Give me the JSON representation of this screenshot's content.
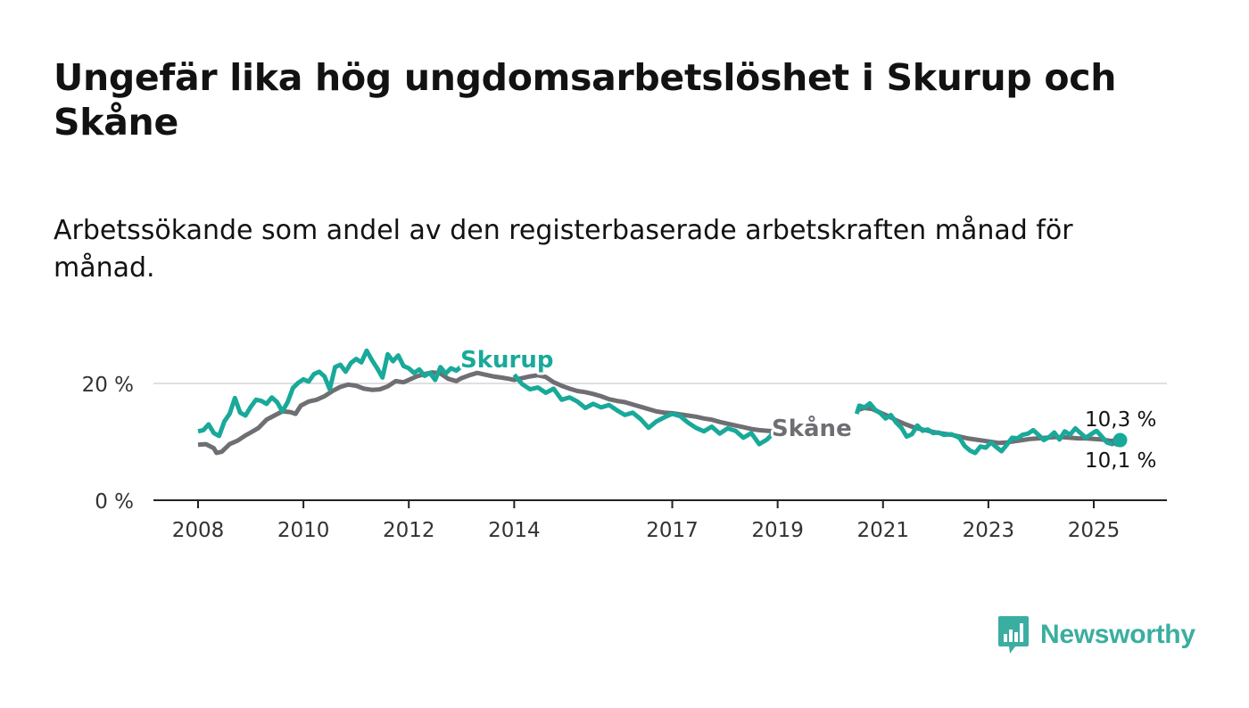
{
  "title": "Ungefär lika hög ungdomsarbetslöshet i Skurup och Skåne",
  "subtitle": "Arbetssökande som andel av den registerbaserade arbetskraften månad för månad.",
  "brand": {
    "name": "Newsworthy",
    "icon": "bar-chart-speech-bubble-icon",
    "color": "#3aaea0"
  },
  "chart_data": {
    "type": "line",
    "xlim": [
      2008,
      2025.8
    ],
    "ylim": [
      0,
      26
    ],
    "y_ticks": [
      {
        "value": 0,
        "label": "0 %"
      },
      {
        "value": 20,
        "label": "20 %"
      }
    ],
    "x_ticks": [
      {
        "value": 2008,
        "label": "2008"
      },
      {
        "value": 2010,
        "label": "2010"
      },
      {
        "value": 2012,
        "label": "2012"
      },
      {
        "value": 2014,
        "label": "2014"
      },
      {
        "value": 2017,
        "label": "2017"
      },
      {
        "value": 2019,
        "label": "2019"
      },
      {
        "value": 2021,
        "label": "2021"
      },
      {
        "value": 2023,
        "label": "2023"
      },
      {
        "value": 2025,
        "label": "2025"
      }
    ],
    "gridlines": "horizontal at 20 %",
    "series": [
      {
        "name": "Skåne",
        "color": "#6e6e73",
        "segments": [
          [
            [
              2008.0,
              9.5
            ],
            [
              2008.15,
              9.6
            ],
            [
              2008.3,
              8.9
            ],
            [
              2008.35,
              8.1
            ],
            [
              2008.45,
              8.3
            ],
            [
              2008.6,
              9.6
            ],
            [
              2008.75,
              10.2
            ],
            [
              2008.9,
              11.1
            ],
            [
              2009.0,
              11.6
            ],
            [
              2009.15,
              12.4
            ],
            [
              2009.3,
              13.8
            ],
            [
              2009.45,
              14.5
            ],
            [
              2009.6,
              15.2
            ],
            [
              2009.75,
              15.1
            ],
            [
              2009.85,
              14.8
            ],
            [
              2009.95,
              16.2
            ],
            [
              2010.1,
              16.9
            ],
            [
              2010.25,
              17.2
            ],
            [
              2010.4,
              17.8
            ],
            [
              2010.55,
              18.7
            ],
            [
              2010.7,
              19.4
            ],
            [
              2010.85,
              19.8
            ],
            [
              2011.0,
              19.6
            ],
            [
              2011.15,
              19.1
            ],
            [
              2011.3,
              18.9
            ],
            [
              2011.45,
              19.0
            ],
            [
              2011.6,
              19.5
            ],
            [
              2011.75,
              20.4
            ],
            [
              2011.9,
              20.2
            ],
            [
              2012.0,
              20.6
            ],
            [
              2012.15,
              21.2
            ],
            [
              2012.3,
              21.6
            ],
            [
              2012.45,
              21.9
            ],
            [
              2012.6,
              21.7
            ],
            [
              2012.75,
              20.8
            ],
            [
              2012.9,
              20.4
            ],
            [
              2013.0,
              20.9
            ],
            [
              2013.15,
              21.4
            ],
            [
              2013.3,
              21.8
            ],
            [
              2013.45,
              21.5
            ],
            [
              2013.6,
              21.2
            ],
            [
              2013.75,
              21.0
            ],
            [
              2013.9,
              20.8
            ],
            [
              2014.0,
              20.6
            ],
            [
              2014.15,
              20.9
            ],
            [
              2014.3,
              21.2
            ],
            [
              2014.45,
              21.4
            ],
            [
              2014.6,
              21.1
            ],
            [
              2014.75,
              20.2
            ],
            [
              2014.9,
              19.6
            ],
            [
              2015.05,
              19.1
            ],
            [
              2015.2,
              18.7
            ],
            [
              2015.35,
              18.5
            ],
            [
              2015.5,
              18.2
            ],
            [
              2015.65,
              17.8
            ],
            [
              2015.8,
              17.3
            ],
            [
              2015.95,
              17.0
            ],
            [
              2016.1,
              16.8
            ],
            [
              2016.25,
              16.4
            ],
            [
              2016.4,
              16.0
            ],
            [
              2016.55,
              15.6
            ],
            [
              2016.7,
              15.2
            ],
            [
              2016.85,
              15.0
            ],
            [
              2017.0,
              14.9
            ],
            [
              2017.15,
              14.7
            ],
            [
              2017.3,
              14.5
            ],
            [
              2017.45,
              14.3
            ],
            [
              2017.6,
              14.0
            ],
            [
              2017.75,
              13.8
            ],
            [
              2017.9,
              13.4
            ],
            [
              2018.05,
              13.1
            ],
            [
              2018.2,
              12.8
            ],
            [
              2018.35,
              12.5
            ],
            [
              2018.5,
              12.2
            ],
            [
              2018.65,
              12.0
            ],
            [
              2018.8,
              11.9
            ],
            [
              2018.95,
              11.8
            ],
            [
              2019.1,
              11.6
            ],
            [
              2019.25,
              11.4
            ]
          ],
          [
            [
              2020.5,
              15.4
            ],
            [
              2020.65,
              15.8
            ],
            [
              2020.8,
              15.6
            ],
            [
              2020.95,
              15.0
            ],
            [
              2021.1,
              14.4
            ],
            [
              2021.25,
              13.7
            ],
            [
              2021.4,
              13.1
            ],
            [
              2021.55,
              12.6
            ],
            [
              2021.7,
              12.2
            ],
            [
              2021.85,
              11.9
            ],
            [
              2022.0,
              11.6
            ],
            [
              2022.15,
              11.4
            ],
            [
              2022.3,
              11.2
            ],
            [
              2022.45,
              10.9
            ],
            [
              2022.6,
              10.6
            ],
            [
              2022.75,
              10.4
            ],
            [
              2022.9,
              10.2
            ],
            [
              2023.05,
              10.0
            ],
            [
              2023.2,
              9.8
            ],
            [
              2023.35,
              9.9
            ],
            [
              2023.5,
              10.1
            ],
            [
              2023.65,
              10.3
            ],
            [
              2023.8,
              10.5
            ],
            [
              2023.95,
              10.6
            ],
            [
              2024.1,
              10.7
            ],
            [
              2024.25,
              10.8
            ],
            [
              2024.4,
              10.8
            ],
            [
              2024.55,
              10.7
            ],
            [
              2024.7,
              10.6
            ],
            [
              2024.85,
              10.6
            ],
            [
              2025.0,
              10.5
            ],
            [
              2025.15,
              10.4
            ],
            [
              2025.3,
              10.2
            ],
            [
              2025.45,
              10.1
            ]
          ]
        ],
        "end_value": 10.1,
        "end_label": "10,1 %"
      },
      {
        "name": "Skurup",
        "color": "#19a99a",
        "segments": [
          [
            [
              2008.0,
              11.8
            ],
            [
              2008.1,
              12.0
            ],
            [
              2008.2,
              13.0
            ],
            [
              2008.3,
              11.5
            ],
            [
              2008.4,
              11.0
            ],
            [
              2008.5,
              13.5
            ],
            [
              2008.6,
              14.8
            ],
            [
              2008.7,
              17.5
            ],
            [
              2008.8,
              15.0
            ],
            [
              2008.9,
              14.5
            ],
            [
              2009.0,
              16.0
            ],
            [
              2009.1,
              17.2
            ],
            [
              2009.2,
              17.0
            ],
            [
              2009.3,
              16.5
            ],
            [
              2009.4,
              17.6
            ],
            [
              2009.5,
              16.8
            ],
            [
              2009.6,
              15.2
            ],
            [
              2009.7,
              16.8
            ],
            [
              2009.8,
              19.2
            ],
            [
              2009.9,
              20.1
            ],
            [
              2010.0,
              20.7
            ],
            [
              2010.1,
              20.3
            ],
            [
              2010.2,
              21.6
            ],
            [
              2010.3,
              22.0
            ],
            [
              2010.4,
              21.2
            ],
            [
              2010.5,
              19.0
            ],
            [
              2010.6,
              22.8
            ],
            [
              2010.7,
              23.2
            ],
            [
              2010.8,
              22.0
            ],
            [
              2010.9,
              23.5
            ],
            [
              2011.0,
              24.2
            ],
            [
              2011.1,
              23.6
            ],
            [
              2011.2,
              25.6
            ],
            [
              2011.3,
              24.0
            ],
            [
              2011.4,
              22.6
            ],
            [
              2011.5,
              21.0
            ],
            [
              2011.6,
              25.0
            ],
            [
              2011.7,
              23.8
            ],
            [
              2011.8,
              24.8
            ],
            [
              2011.9,
              23.0
            ],
            [
              2012.0,
              22.6
            ],
            [
              2012.1,
              21.8
            ],
            [
              2012.2,
              22.4
            ],
            [
              2012.3,
              21.3
            ],
            [
              2012.4,
              21.8
            ],
            [
              2012.5,
              20.6
            ],
            [
              2012.6,
              22.8
            ],
            [
              2012.7,
              21.7
            ],
            [
              2012.8,
              22.6
            ],
            [
              2012.9,
              22.2
            ],
            [
              2013.0,
              22.9
            ],
            [
              2013.1,
              23.9
            ]
          ],
          [
            [
              2014.0,
              21.5
            ],
            [
              2014.15,
              19.9
            ],
            [
              2014.3,
              19.0
            ],
            [
              2014.45,
              19.3
            ],
            [
              2014.6,
              18.4
            ],
            [
              2014.75,
              19.1
            ],
            [
              2014.9,
              17.2
            ],
            [
              2015.05,
              17.6
            ],
            [
              2015.2,
              16.9
            ],
            [
              2015.35,
              15.8
            ],
            [
              2015.5,
              16.5
            ],
            [
              2015.65,
              15.9
            ],
            [
              2015.8,
              16.3
            ],
            [
              2015.95,
              15.4
            ],
            [
              2016.1,
              14.6
            ],
            [
              2016.25,
              15.0
            ],
            [
              2016.4,
              13.9
            ],
            [
              2016.55,
              12.4
            ],
            [
              2016.7,
              13.5
            ],
            [
              2016.85,
              14.2
            ],
            [
              2017.0,
              14.8
            ],
            [
              2017.15,
              14.4
            ],
            [
              2017.3,
              13.3
            ],
            [
              2017.45,
              12.4
            ],
            [
              2017.6,
              11.8
            ],
            [
              2017.75,
              12.6
            ],
            [
              2017.9,
              11.4
            ],
            [
              2018.05,
              12.3
            ],
            [
              2018.2,
              11.9
            ],
            [
              2018.35,
              10.7
            ],
            [
              2018.5,
              11.5
            ],
            [
              2018.65,
              9.6
            ],
            [
              2018.8,
              10.4
            ],
            [
              2018.95,
              11.8
            ],
            [
              2019.1,
              12.3
            ],
            [
              2019.2,
              11.4
            ]
          ],
          [
            [
              2020.5,
              14.8
            ],
            [
              2020.55,
              16.2
            ],
            [
              2020.65,
              15.9
            ],
            [
              2020.75,
              16.6
            ],
            [
              2020.85,
              15.5
            ],
            [
              2020.95,
              14.9
            ],
            [
              2021.05,
              14.0
            ],
            [
              2021.15,
              14.6
            ],
            [
              2021.25,
              13.3
            ],
            [
              2021.35,
              12.4
            ],
            [
              2021.45,
              10.9
            ],
            [
              2021.55,
              11.3
            ],
            [
              2021.65,
              12.8
            ],
            [
              2021.75,
              11.9
            ],
            [
              2021.85,
              12.1
            ],
            [
              2021.95,
              11.5
            ],
            [
              2022.05,
              11.6
            ],
            [
              2022.15,
              11.2
            ],
            [
              2022.3,
              11.3
            ],
            [
              2022.45,
              10.7
            ],
            [
              2022.55,
              9.3
            ],
            [
              2022.65,
              8.5
            ],
            [
              2022.75,
              8.1
            ],
            [
              2022.85,
              9.2
            ],
            [
              2022.95,
              9.0
            ],
            [
              2023.05,
              9.9
            ],
            [
              2023.15,
              9.1
            ],
            [
              2023.25,
              8.4
            ],
            [
              2023.35,
              9.5
            ],
            [
              2023.45,
              10.7
            ],
            [
              2023.55,
              10.6
            ],
            [
              2023.65,
              11.2
            ],
            [
              2023.75,
              11.4
            ],
            [
              2023.85,
              12.0
            ],
            [
              2023.95,
              11.2
            ],
            [
              2024.05,
              10.3
            ],
            [
              2024.15,
              10.8
            ],
            [
              2024.25,
              11.6
            ],
            [
              2024.35,
              10.4
            ],
            [
              2024.45,
              11.8
            ],
            [
              2024.55,
              11.2
            ],
            [
              2024.65,
              12.3
            ],
            [
              2024.75,
              11.5
            ],
            [
              2024.85,
              10.7
            ],
            [
              2024.95,
              11.3
            ],
            [
              2025.05,
              11.9
            ],
            [
              2025.15,
              10.9
            ],
            [
              2025.25,
              9.9
            ],
            [
              2025.35,
              9.6
            ],
            [
              2025.45,
              10.9
            ],
            [
              2025.5,
              10.3
            ]
          ]
        ],
        "end_value": 10.3,
        "end_label": "10,3 %"
      }
    ]
  }
}
